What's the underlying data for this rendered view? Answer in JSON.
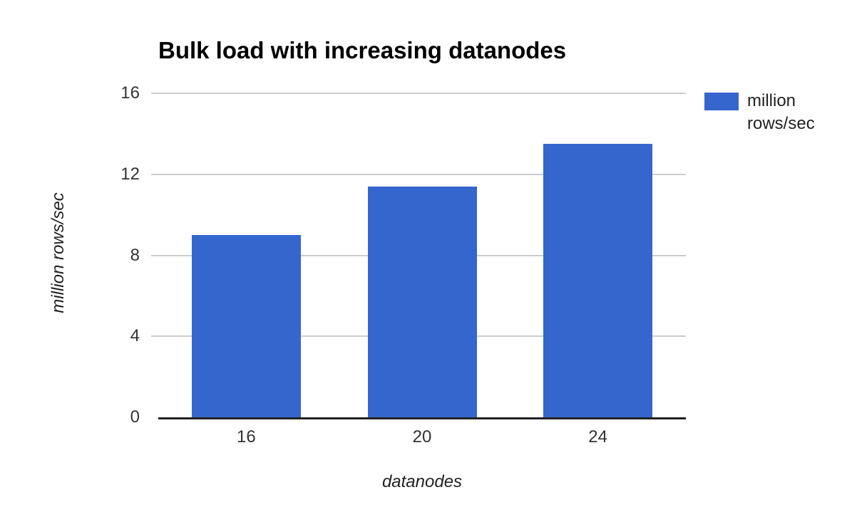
{
  "chart_data": {
    "type": "bar",
    "title": "Bulk load with increasing datanodes",
    "xlabel": "datanodes",
    "ylabel": "million rows/sec",
    "categories": [
      "16",
      "20",
      "24"
    ],
    "series": [
      {
        "name": "million rows/sec",
        "values": [
          9.0,
          11.4,
          13.5
        ]
      }
    ],
    "ylim": [
      0,
      16
    ],
    "yticks": [
      16,
      12,
      8,
      4,
      0
    ],
    "grid": true,
    "legend_position": "right",
    "colors": {
      "bar": "#3566CD",
      "gridline": "#CCCCCC",
      "axis_line": "#222222",
      "tick_label": "#333333",
      "axis_title": "#222222",
      "title": "#000000",
      "background": "#FFFFFF"
    }
  }
}
